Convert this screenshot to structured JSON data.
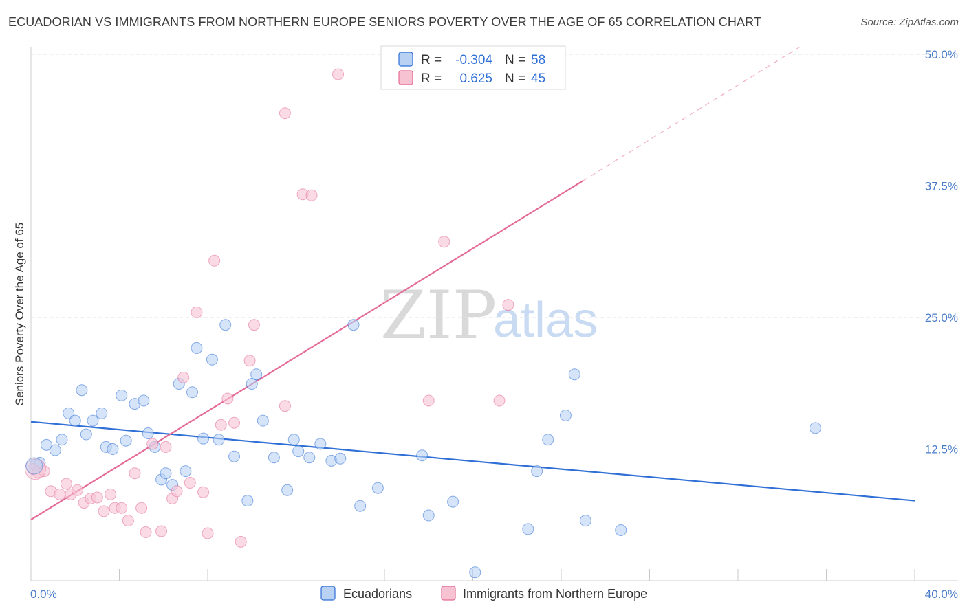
{
  "title": "ECUADORIAN VS IMMIGRANTS FROM NORTHERN EUROPE SENIORS POVERTY OVER THE AGE OF 65 CORRELATION CHART",
  "source": "Source: ZipAtlas.com",
  "watermark": {
    "zip": "ZIP",
    "atlas": "atlas"
  },
  "colors": {
    "blue": "#2f6fd6",
    "blue_fill": "#b9d2f3",
    "pink": "#e46a97",
    "pink_fill": "#f7c3d3"
  },
  "legend": {
    "r_label": "R =",
    "n_label": "N =",
    "rows": [
      {
        "r": "-0.304",
        "n": "58"
      },
      {
        "r": "0.625",
        "n": "45"
      }
    ]
  },
  "chart_data": {
    "type": "scatter",
    "xlabel": "",
    "ylabel": "Seniors Poverty Over the Age of 65",
    "xlim": [
      0,
      40
    ],
    "ylim": [
      0,
      50
    ],
    "x_tick_labels": [
      "0.0%",
      "40.0%"
    ],
    "y_ticks": [
      12.5,
      25.0,
      37.5,
      50.0
    ],
    "y_tick_labels": [
      "12.5%",
      "25.0%",
      "37.5%",
      "50.0%"
    ],
    "series": [
      {
        "name": "Ecuadorians",
        "trend": {
          "x": [
            0,
            40
          ],
          "y": [
            15.1,
            7.6
          ]
        },
        "points": [
          [
            0.2,
            11.0
          ],
          [
            0.4,
            11.2
          ],
          [
            0.7,
            12.9
          ],
          [
            1.1,
            12.4
          ],
          [
            1.4,
            13.4
          ],
          [
            1.7,
            15.9
          ],
          [
            2.0,
            15.2
          ],
          [
            2.3,
            18.1
          ],
          [
            2.5,
            13.9
          ],
          [
            2.8,
            15.2
          ],
          [
            3.2,
            15.9
          ],
          [
            3.4,
            12.7
          ],
          [
            3.7,
            12.5
          ],
          [
            4.1,
            17.6
          ],
          [
            4.3,
            13.3
          ],
          [
            4.7,
            16.8
          ],
          [
            5.1,
            17.1
          ],
          [
            5.3,
            14.0
          ],
          [
            5.6,
            12.7
          ],
          [
            5.9,
            9.6
          ],
          [
            6.1,
            10.2
          ],
          [
            6.4,
            9.1
          ],
          [
            6.7,
            18.7
          ],
          [
            7.0,
            10.4
          ],
          [
            7.3,
            17.9
          ],
          [
            7.5,
            22.1
          ],
          [
            7.8,
            13.5
          ],
          [
            8.2,
            21.0
          ],
          [
            8.5,
            13.4
          ],
          [
            8.8,
            24.3
          ],
          [
            9.2,
            11.8
          ],
          [
            9.8,
            7.6
          ],
          [
            10.0,
            18.7
          ],
          [
            10.2,
            19.6
          ],
          [
            10.5,
            15.2
          ],
          [
            11.0,
            11.7
          ],
          [
            11.6,
            8.6
          ],
          [
            11.9,
            13.4
          ],
          [
            12.1,
            12.3
          ],
          [
            12.6,
            11.7
          ],
          [
            13.1,
            13.0
          ],
          [
            13.6,
            11.4
          ],
          [
            14.0,
            11.6
          ],
          [
            14.6,
            24.3
          ],
          [
            14.9,
            7.1
          ],
          [
            15.7,
            8.8
          ],
          [
            17.7,
            11.9
          ],
          [
            18.0,
            6.2
          ],
          [
            19.1,
            7.5
          ],
          [
            20.1,
            0.8
          ],
          [
            22.5,
            4.9
          ],
          [
            22.9,
            10.4
          ],
          [
            23.4,
            13.4
          ],
          [
            24.2,
            15.7
          ],
          [
            24.6,
            19.6
          ],
          [
            25.1,
            5.7
          ],
          [
            26.7,
            4.8
          ],
          [
            35.5,
            14.5
          ]
        ]
      },
      {
        "name": "Immigrants from Northern Europe",
        "trend": {
          "x": [
            0,
            25
          ],
          "y": [
            5.8,
            38.0
          ]
        },
        "trend_extension": {
          "x": [
            25,
            34.8
          ],
          "y": [
            38.0,
            50.7
          ]
        },
        "points": [
          [
            0.1,
            10.6
          ],
          [
            0.3,
            10.3
          ],
          [
            0.6,
            10.4
          ],
          [
            0.9,
            8.5
          ],
          [
            1.3,
            8.2
          ],
          [
            1.6,
            9.2
          ],
          [
            1.8,
            8.2
          ],
          [
            2.1,
            8.6
          ],
          [
            2.4,
            7.4
          ],
          [
            2.7,
            7.8
          ],
          [
            3.0,
            7.9
          ],
          [
            3.3,
            6.6
          ],
          [
            3.6,
            8.2
          ],
          [
            3.8,
            6.9
          ],
          [
            4.1,
            6.9
          ],
          [
            4.4,
            5.7
          ],
          [
            4.7,
            10.2
          ],
          [
            5.0,
            6.9
          ],
          [
            5.2,
            4.6
          ],
          [
            5.5,
            13.0
          ],
          [
            5.9,
            4.7
          ],
          [
            6.1,
            12.7
          ],
          [
            6.4,
            7.8
          ],
          [
            6.6,
            8.5
          ],
          [
            6.9,
            19.3
          ],
          [
            7.2,
            9.3
          ],
          [
            7.5,
            25.5
          ],
          [
            7.8,
            8.4
          ],
          [
            8.0,
            4.5
          ],
          [
            8.3,
            30.4
          ],
          [
            8.6,
            14.8
          ],
          [
            8.9,
            17.3
          ],
          [
            9.2,
            15.0
          ],
          [
            9.5,
            3.7
          ],
          [
            9.9,
            20.9
          ],
          [
            10.1,
            24.3
          ],
          [
            11.5,
            16.6
          ],
          [
            11.5,
            44.4
          ],
          [
            12.3,
            36.7
          ],
          [
            12.7,
            36.6
          ],
          [
            13.9,
            48.1
          ],
          [
            18.0,
            17.1
          ],
          [
            18.7,
            32.2
          ],
          [
            21.2,
            17.1
          ],
          [
            21.6,
            26.2
          ]
        ]
      }
    ],
    "legend": [
      "Ecuadorians",
      "Immigrants from Northern Europe"
    ]
  }
}
